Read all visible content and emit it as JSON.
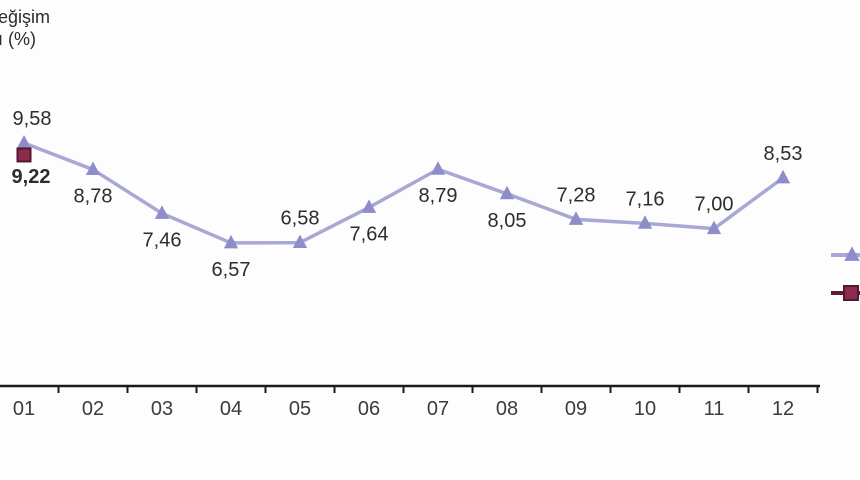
{
  "title": {
    "line1": "eğişim",
    "line2": "ı (%)"
  },
  "colors": {
    "line": "#a8a8d4",
    "line_marker": "#8d8dc9",
    "secondary_fill": "#8f2b4f",
    "secondary_border": "#4f1930",
    "secondary_line": "#5c1d38",
    "axis": "#1a1a1a",
    "value_label": "#2d2d2d",
    "tick_label": "#3c3c3c",
    "background": "#fdfdfd"
  },
  "chart_data": {
    "type": "line",
    "x_categories": [
      "01",
      "02",
      "03",
      "04",
      "05",
      "06",
      "07",
      "08",
      "09",
      "10",
      "11",
      "12"
    ],
    "series": [
      {
        "name": "annual-change-line",
        "marker": "triangle",
        "color": "#a8a8d4",
        "values": [
          9.58,
          8.78,
          7.46,
          6.57,
          6.58,
          7.64,
          8.79,
          8.05,
          7.28,
          7.16,
          7.0,
          8.53
        ],
        "point_labels": [
          "9,58",
          "8,78",
          "7,46",
          "6,57",
          "6,58",
          "7,64",
          "8,79",
          "8,05",
          "7,28",
          "7,16",
          "7,00",
          "8,53"
        ],
        "label_positions": [
          "above",
          "below",
          "below",
          "below",
          "above",
          "below",
          "below",
          "below",
          "above",
          "above",
          "above",
          "above"
        ]
      },
      {
        "name": "single-point-series",
        "marker": "square",
        "color": "#8f2b4f",
        "x_index": 0,
        "values": [
          9.22
        ],
        "point_labels": [
          "9,22"
        ],
        "label_bold": true
      }
    ],
    "title_partial": "eğişim ı (%)",
    "xlabel": "",
    "ylabel": "",
    "ylim_visible": [
      6.3,
      9.8
    ],
    "grid": false,
    "legend_position": "right-cropped",
    "legend_labels_visible": false
  }
}
